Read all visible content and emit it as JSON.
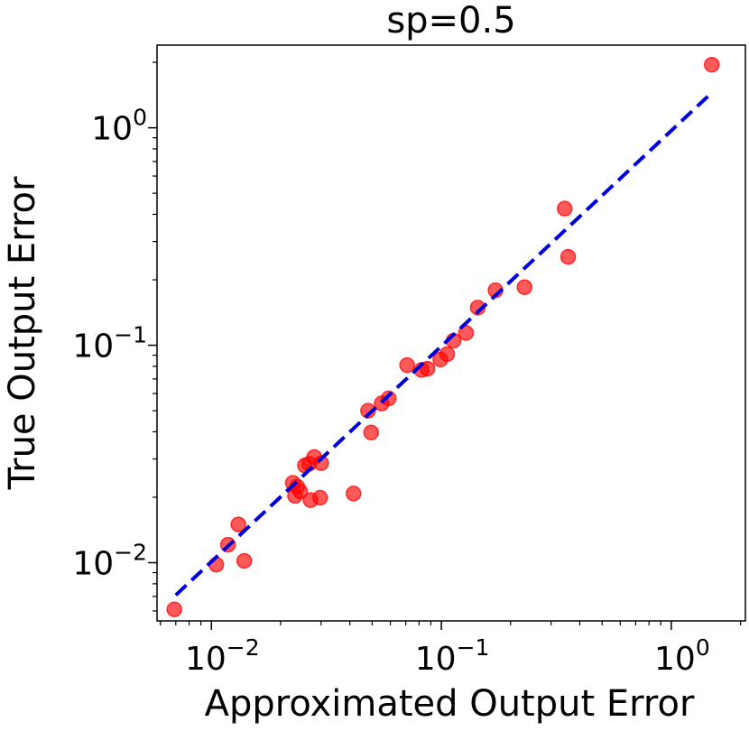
{
  "chart_data": {
    "type": "scatter",
    "title": "sp=0.5",
    "xlabel": "Approximated Output Error",
    "ylabel": "True Output Error",
    "xscale": "log",
    "yscale": "log",
    "xlim": [
      0.0058,
      2.1
    ],
    "ylim": [
      0.0054,
      2.4
    ],
    "grid": false,
    "x_ticks": [
      {
        "value": 0.01,
        "base": "10",
        "exp": "−2"
      },
      {
        "value": 0.1,
        "base": "10",
        "exp": "−1"
      },
      {
        "value": 1,
        "base": "10",
        "exp": "0"
      }
    ],
    "y_ticks": [
      {
        "value": 0.01,
        "base": "10",
        "exp": "−2"
      },
      {
        "value": 0.1,
        "base": "10",
        "exp": "−1"
      },
      {
        "value": 1,
        "base": "10",
        "exp": "0"
      }
    ],
    "series": [
      {
        "kind": "scatter",
        "color": "#ff0000",
        "points": [
          [
            0.0069,
            0.0061
          ],
          [
            0.0105,
            0.0098
          ],
          [
            0.0118,
            0.0121
          ],
          [
            0.0131,
            0.015
          ],
          [
            0.0139,
            0.0102
          ],
          [
            0.0226,
            0.0233
          ],
          [
            0.0231,
            0.0203
          ],
          [
            0.0236,
            0.0224
          ],
          [
            0.0243,
            0.0213
          ],
          [
            0.0255,
            0.028
          ],
          [
            0.0266,
            0.0285
          ],
          [
            0.027,
            0.0194
          ],
          [
            0.028,
            0.0306
          ],
          [
            0.0297,
            0.0199
          ],
          [
            0.03,
            0.0287
          ],
          [
            0.0415,
            0.0208
          ],
          [
            0.048,
            0.05
          ],
          [
            0.0495,
            0.0397
          ],
          [
            0.055,
            0.054
          ],
          [
            0.059,
            0.057
          ],
          [
            0.071,
            0.081
          ],
          [
            0.082,
            0.077
          ],
          [
            0.087,
            0.078
          ],
          [
            0.099,
            0.086
          ],
          [
            0.106,
            0.091
          ],
          [
            0.113,
            0.105
          ],
          [
            0.128,
            0.114
          ],
          [
            0.144,
            0.149
          ],
          [
            0.172,
            0.179
          ],
          [
            0.23,
            0.185
          ],
          [
            0.344,
            0.425
          ],
          [
            0.356,
            0.255
          ],
          [
            1.5,
            1.95
          ]
        ]
      },
      {
        "kind": "line",
        "color": "#0000dd",
        "style": "dashed",
        "points": [
          [
            0.007,
            0.0071
          ],
          [
            1.5,
            1.45
          ]
        ]
      }
    ]
  }
}
